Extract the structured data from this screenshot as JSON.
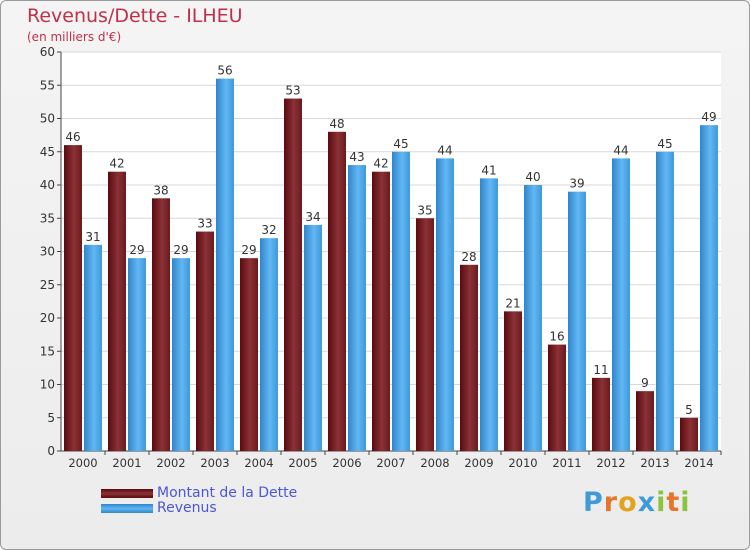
{
  "chart_data": {
    "type": "bar",
    "title": "Revenus/Dette - ILHEU",
    "subtitle": "(en milliers d'€)",
    "categories": [
      "2000",
      "2001",
      "2002",
      "2003",
      "2004",
      "2005",
      "2006",
      "2007",
      "2008",
      "2009",
      "2010",
      "2011",
      "2012",
      "2013",
      "2014"
    ],
    "series": [
      {
        "name": "Montant de la Dette",
        "color": "#7a2228",
        "values": [
          46,
          42,
          38,
          33,
          29,
          53,
          48,
          42,
          35,
          28,
          21,
          16,
          11,
          9,
          5
        ]
      },
      {
        "name": "Revenus",
        "color": "#4ea6e8",
        "values": [
          31,
          29,
          29,
          56,
          32,
          34,
          43,
          45,
          44,
          41,
          40,
          39,
          44,
          45,
          49
        ]
      }
    ],
    "ylim": [
      0,
      60
    ],
    "yticks": [
      0,
      5,
      10,
      15,
      20,
      25,
      30,
      35,
      40,
      45,
      50,
      55,
      60
    ],
    "grid": true,
    "legend": "bottom-left"
  },
  "logo": {
    "letters": [
      "P",
      "r",
      "o",
      "x",
      "i",
      "t",
      "i"
    ],
    "colors": [
      "#3f9bd8",
      "#e5752b",
      "#e5a21f",
      "#3f9bd8",
      "#8bc53f",
      "#e5752b",
      "#8bc53f"
    ]
  }
}
